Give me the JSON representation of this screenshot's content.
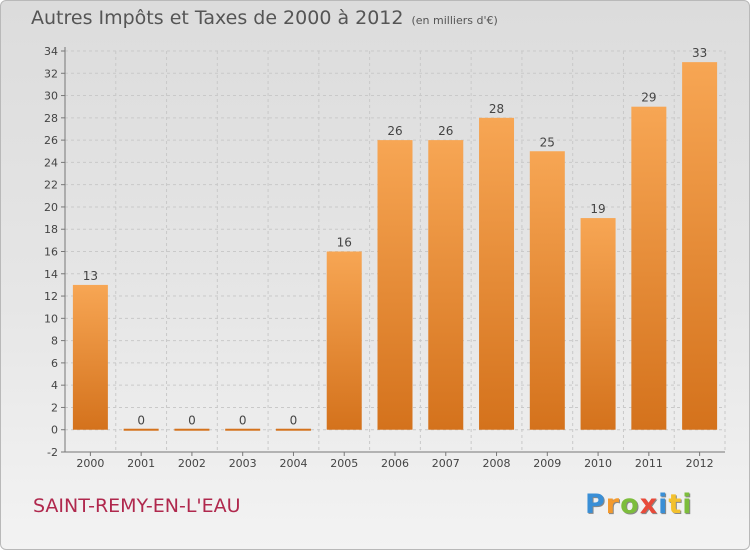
{
  "header": {
    "title": "Autres Impôts et Taxes de 2000 à 2012",
    "subtitle": "(en milliers d'€)"
  },
  "footer": {
    "city": "SAINT-REMY-EN-L'EAU",
    "brand_letters": [
      {
        "ch": "P",
        "color": "#3a8fd6"
      },
      {
        "ch": "r",
        "color": "#f39a2e"
      },
      {
        "ch": "o",
        "color": "#7dbd3c"
      },
      {
        "ch": "x",
        "color": "#e84a3a"
      },
      {
        "ch": "i",
        "color": "#3a8fd6"
      },
      {
        "ch": "t",
        "color": "#f3c12e"
      },
      {
        "ch": "i",
        "color": "#7dbd3c"
      }
    ]
  },
  "chart_data": {
    "type": "bar",
    "categories": [
      "2000",
      "2001",
      "2002",
      "2003",
      "2004",
      "2005",
      "2006",
      "2007",
      "2008",
      "2009",
      "2010",
      "2011",
      "2012"
    ],
    "values": [
      13,
      0,
      0,
      0,
      0,
      16,
      26,
      26,
      28,
      25,
      19,
      29,
      33
    ],
    "ylim": [
      -2,
      34
    ],
    "yticks": [
      -2,
      0,
      2,
      4,
      6,
      8,
      10,
      12,
      14,
      16,
      18,
      20,
      22,
      24,
      26,
      28,
      30,
      32,
      34
    ],
    "grid": true,
    "bar_color_top": "#f7a654",
    "bar_color_bottom": "#d4721c",
    "xlabel": "",
    "ylabel": ""
  }
}
